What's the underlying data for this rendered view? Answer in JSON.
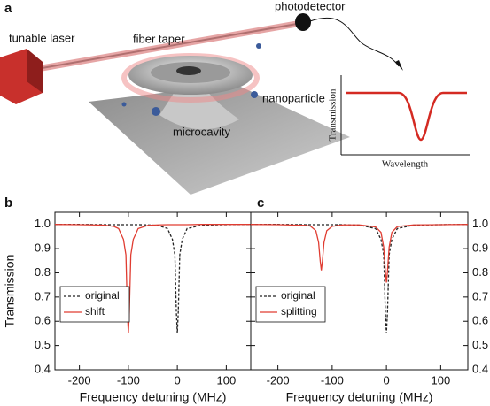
{
  "illustration": {
    "panel": "a",
    "labels": [
      "tunable laser",
      "fiber taper",
      "photodetector",
      "nanoparticle",
      "microcavity"
    ],
    "inset": {
      "ylabel": "Transmission",
      "xlabel": "Wavelength"
    }
  },
  "chart_data": [
    {
      "type": "line",
      "panel": "b",
      "xlabel": "Frequency detuning (MHz)",
      "ylabel": "Transmission",
      "xlim": [
        -250,
        150
      ],
      "xticks": [
        -200,
        -100,
        0,
        100
      ],
      "ylim": [
        0.4,
        1.05
      ],
      "yticks": [
        0.4,
        0.5,
        0.6,
        0.7,
        0.8,
        0.9,
        {
          "value": 1.0,
          "label": "1.0"
        }
      ],
      "yaxis_side": "left",
      "legend": "lower left",
      "x": [
        -250,
        -200,
        -150,
        -130,
        -120,
        -110,
        -105,
        -102,
        -100,
        -98,
        -95,
        -90,
        -80,
        -60,
        -40,
        -20,
        -10,
        -5,
        -2,
        0,
        2,
        5,
        10,
        20,
        50,
        100,
        150
      ],
      "series": [
        {
          "name": "original",
          "color": "#222222",
          "style": "dashed",
          "values": [
            1.0,
            1.0,
            0.999,
            0.999,
            0.999,
            0.999,
            0.999,
            0.999,
            0.999,
            0.999,
            0.999,
            0.999,
            0.999,
            0.998,
            0.996,
            0.983,
            0.938,
            0.874,
            0.64,
            0.55,
            0.64,
            0.874,
            0.938,
            0.983,
            0.997,
            0.999,
            1.0
          ]
        },
        {
          "name": "shift",
          "color": "#e03c31",
          "style": "solid",
          "values": [
            1.0,
            0.999,
            0.997,
            0.992,
            0.983,
            0.938,
            0.874,
            0.64,
            0.55,
            0.64,
            0.874,
            0.938,
            0.983,
            0.996,
            0.998,
            0.999,
            0.999,
            0.999,
            0.999,
            0.999,
            0.999,
            0.999,
            0.999,
            0.999,
            1.0,
            1.0,
            1.0
          ]
        }
      ]
    },
    {
      "type": "line",
      "panel": "c",
      "xlabel": "Frequency detuning (MHz)",
      "xlim": [
        -250,
        150
      ],
      "xticks": [
        -200,
        -100,
        0,
        100
      ],
      "ylim": [
        0.4,
        1.05
      ],
      "yticks": [
        0.4,
        0.5,
        0.6,
        0.7,
        0.8,
        0.9,
        {
          "value": 1.0,
          "label": "1.0"
        }
      ],
      "yaxis_side": "right",
      "legend": "lower left",
      "x": [
        -250,
        -200,
        -150,
        -140,
        -130,
        -125,
        -122,
        -120,
        -118,
        -115,
        -110,
        -100,
        -80,
        -50,
        -20,
        -10,
        -5,
        -2,
        0,
        2,
        5,
        10,
        20,
        50,
        100,
        150
      ],
      "series": [
        {
          "name": "original",
          "color": "#222222",
          "style": "dashed",
          "values": [
            1.0,
            1.0,
            0.999,
            0.999,
            0.999,
            0.999,
            0.999,
            0.999,
            0.999,
            0.999,
            0.999,
            0.999,
            0.999,
            0.997,
            0.983,
            0.938,
            0.874,
            0.64,
            0.55,
            0.64,
            0.874,
            0.938,
            0.983,
            0.997,
            0.999,
            1.0
          ]
        },
        {
          "name": "splitting",
          "color": "#e03c31",
          "style": "solid",
          "values": [
            1.0,
            0.999,
            0.996,
            0.993,
            0.974,
            0.926,
            0.848,
            0.81,
            0.848,
            0.926,
            0.974,
            0.992,
            0.998,
            0.998,
            0.99,
            0.967,
            0.906,
            0.808,
            0.76,
            0.808,
            0.906,
            0.967,
            0.991,
            0.998,
            0.999,
            1.0
          ]
        }
      ]
    }
  ]
}
